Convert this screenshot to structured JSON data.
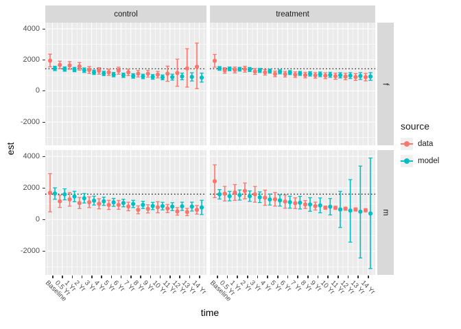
{
  "figure": {
    "x_axis_title": "time",
    "y_axis_title": "est",
    "facet_col_labels": [
      "control",
      "treatment"
    ],
    "facet_row_labels": [
      "f",
      "m"
    ],
    "legend": {
      "title": "source",
      "items": [
        {
          "label": "data",
          "color": "#F8766D"
        },
        {
          "label": "model",
          "color": "#00BFC4"
        }
      ]
    },
    "colors": {
      "panel_bg": "#EBEBEB",
      "strip_bg": "#D9D9D9",
      "grid": "#FFFFFF",
      "axis_text": "#4D4D4D",
      "title_text": "#000000",
      "reference_line": "#000000"
    }
  },
  "chart_data": {
    "type": "scatter",
    "subtype": "pointrange-with-errorbars",
    "title": "",
    "xlabel": "time",
    "ylabel": "est",
    "grid": true,
    "legend_position": "right",
    "x_categories": [
      "Baseline",
      "0.5 Yr",
      "1 Yr",
      "2 Yr",
      "3 Yr",
      "4 Yr",
      "5 Yr",
      "6 Yr",
      "7 Yr",
      "8 Yr",
      "9 Yr",
      "10 Yr",
      "11 Yr",
      "12 Yr",
      "13 Yr",
      "14 Yr"
    ],
    "y_ticks": [
      4000,
      2000,
      0,
      -2000
    ],
    "y_minor_ticks": [
      3000,
      1000,
      -1000,
      -3000
    ],
    "ylim": [
      -3500,
      4400
    ],
    "reference_lines": {
      "f": 1430,
      "m": 1610
    },
    "panels": [
      {
        "row": "f",
        "col": "control",
        "series": [
          {
            "name": "data",
            "color": "#F8766D",
            "est": [
              1950,
              1675,
              1645,
              1585,
              1350,
              1290,
              1200,
              1305,
              1200,
              1110,
              1110,
              1050,
              1110,
              1155,
              1450,
              1555
            ],
            "lo": [
              1550,
              1430,
              1400,
              1340,
              1130,
              1080,
              1000,
              1080,
              990,
              900,
              890,
              840,
              620,
              300,
              250,
              150
            ],
            "hi": [
              2370,
              1920,
              1890,
              1830,
              1570,
              1500,
              1400,
              1530,
              1410,
              1320,
              1330,
              1260,
              1600,
              2050,
              2720,
              3080
            ]
          },
          {
            "name": "model",
            "color": "#00BFC4",
            "est": [
              1450,
              1410,
              1380,
              1335,
              1200,
              1130,
              1050,
              1010,
              965,
              935,
              905,
              875,
              890,
              935,
              905,
              860
            ],
            "lo": [
              1310,
              1270,
              1240,
              1190,
              1060,
              990,
              910,
              870,
              820,
              790,
              755,
              720,
              700,
              720,
              640,
              570
            ],
            "hi": [
              1590,
              1550,
              1520,
              1480,
              1340,
              1270,
              1190,
              1150,
              1110,
              1080,
              1055,
              1030,
              1080,
              1150,
              1170,
              1150
            ]
          }
        ]
      },
      {
        "row": "f",
        "col": "treatment",
        "series": [
          {
            "name": "data",
            "color": "#F8766D",
            "est": [
              1940,
              1320,
              1350,
              1400,
              1250,
              1200,
              1100,
              1080,
              1050,
              1020,
              1000,
              980,
              950,
              930,
              900,
              890
            ],
            "lo": [
              1530,
              1140,
              1160,
              1210,
              1060,
              1020,
              920,
              900,
              870,
              840,
              820,
              790,
              750,
              720,
              680,
              650
            ],
            "hi": [
              2350,
              1500,
              1540,
              1590,
              1440,
              1380,
              1280,
              1260,
              1230,
              1200,
              1180,
              1170,
              1150,
              1140,
              1120,
              1130
            ]
          },
          {
            "name": "model",
            "color": "#00BFC4",
            "est": [
              1450,
              1420,
              1400,
              1380,
              1320,
              1280,
              1230,
              1180,
              1130,
              1100,
              1070,
              1040,
              1010,
              990,
              960,
              930
            ],
            "lo": [
              1330,
              1300,
              1280,
              1250,
              1190,
              1150,
              1100,
              1050,
              1000,
              960,
              920,
              880,
              840,
              800,
              740,
              680
            ],
            "hi": [
              1570,
              1540,
              1520,
              1510,
              1450,
              1410,
              1360,
              1310,
              1260,
              1240,
              1220,
              1200,
              1180,
              1180,
              1180,
              1180
            ]
          }
        ]
      },
      {
        "row": "m",
        "col": "control",
        "series": [
          {
            "name": "data",
            "color": "#F8766D",
            "est": [
              1700,
              1160,
              1280,
              1050,
              1100,
              1000,
              930,
              930,
              830,
              620,
              680,
              780,
              700,
              520,
              480,
              620
            ],
            "lo": [
              490,
              770,
              850,
              700,
              760,
              680,
              640,
              650,
              560,
              370,
              420,
              430,
              440,
              280,
              250,
              350
            ],
            "hi": [
              2910,
              1550,
              1710,
              1400,
              1440,
              1320,
              1220,
              1210,
              1100,
              870,
              940,
              1130,
              960,
              760,
              710,
              890
            ]
          },
          {
            "name": "model",
            "color": "#00BFC4",
            "est": [
              1650,
              1600,
              1460,
              1350,
              1200,
              1160,
              1090,
              1050,
              990,
              930,
              860,
              855,
              820,
              840,
              820,
              770
            ],
            "lo": [
              1290,
              1250,
              1130,
              1050,
              920,
              900,
              840,
              810,
              760,
              700,
              630,
              615,
              570,
              580,
              540,
              320
            ],
            "hi": [
              2010,
              1950,
              1790,
              1650,
              1480,
              1420,
              1340,
              1290,
              1220,
              1160,
              1090,
              1095,
              1070,
              1100,
              1100,
              1220
            ]
          }
        ]
      },
      {
        "row": "m",
        "col": "treatment",
        "series": [
          {
            "name": "data",
            "color": "#F8766D",
            "est": [
              2430,
              1640,
              1715,
              1815,
              1600,
              1385,
              1285,
              1140,
              1040,
              955,
              855,
              755,
              745,
              690,
              640,
              590
            ],
            "lo": [
              1390,
              1180,
              1215,
              1315,
              1100,
              905,
              855,
              720,
              700,
              705,
              605,
              655,
              645,
              590,
              540,
              490
            ],
            "hi": [
              3470,
              2100,
              2215,
              2315,
              2100,
              1865,
              1715,
              1560,
              1380,
              1205,
              1105,
              855,
              845,
              790,
              740,
              690
            ]
          },
          {
            "name": "model",
            "color": "#00BFC4",
            "est": [
              1600,
              1485,
              1555,
              1485,
              1415,
              1270,
              1215,
              1100,
              1070,
              955,
              900,
              815,
              640,
              570,
              500,
              385
            ],
            "lo": [
              1300,
              1185,
              1235,
              1155,
              1075,
              920,
              855,
              720,
              670,
              525,
              430,
              295,
              -500,
              -1430,
              -2430,
              -3100
            ],
            "hi": [
              1900,
              1785,
              1875,
              1815,
              1755,
              1620,
              1575,
              1480,
              1470,
              1385,
              1370,
              1335,
              1785,
              2530,
              3390,
              3900
            ]
          }
        ]
      }
    ]
  }
}
